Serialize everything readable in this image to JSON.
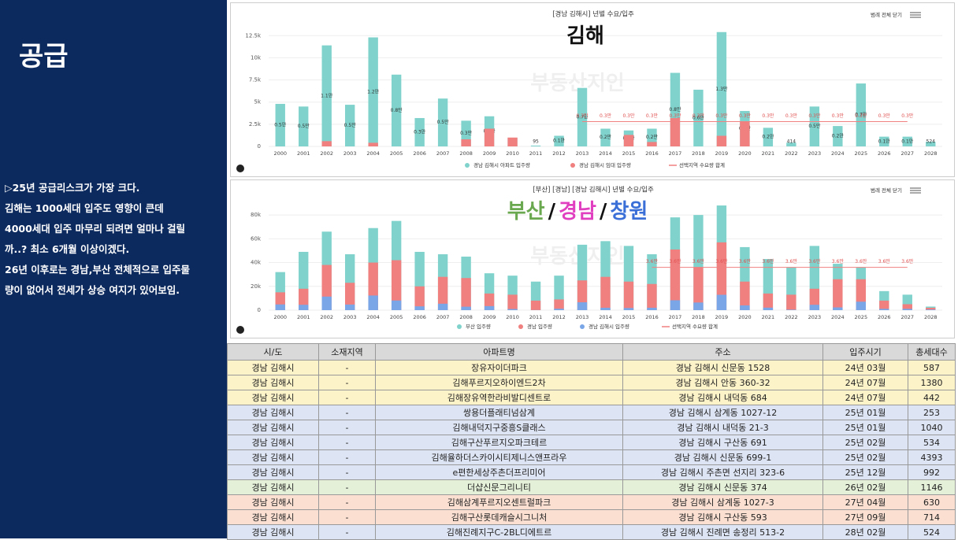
{
  "slide": {
    "title": "공급",
    "notes": [
      "▷25년 공급리스크가 가장 크다.",
      "김해는 1000세대 입주도 영향이 큰데",
      "4000세대 입주 마무리 되려면 얼마나 걸릴",
      "까..? 최소 6개월 이상이겠다.",
      "26년 이후로는 경남,부산 전체적으로 입주물",
      "량이 없어서 전세가 상승 여지가 있어보임."
    ]
  },
  "chart_data": [
    {
      "type": "bar",
      "title": "[경남 김해시] 년별 수요/입주",
      "overlay": [
        {
          "text": "김해",
          "color": "#111111"
        }
      ],
      "watermark": "부동산지인",
      "legend_toggle": "범례 전체 닫기",
      "categories": [
        "2000",
        "2001",
        "2002",
        "2003",
        "2004",
        "2005",
        "2006",
        "2007",
        "2008",
        "2009",
        "2010",
        "2011",
        "2012",
        "2013",
        "2014",
        "2015",
        "2016",
        "2017",
        "2018",
        "2019",
        "2020",
        "2021",
        "2022",
        "2023",
        "2024",
        "2025",
        "2026",
        "2027",
        "2028"
      ],
      "ylim": [
        0,
        13500
      ],
      "yticks": [
        {
          "value": 0,
          "label": "0"
        },
        {
          "value": 2500,
          "label": "2.5k"
        },
        {
          "value": 5000,
          "label": "5k"
        },
        {
          "value": 7500,
          "label": "7.5k"
        },
        {
          "value": 10000,
          "label": "10k"
        },
        {
          "value": 12500,
          "label": "12.5k"
        }
      ],
      "series": [
        {
          "name": "경남 김해시 아파트 입주량",
          "kind": "bar",
          "color": "#7fd3cc",
          "values": [
            4800,
            4500,
            11400,
            4700,
            12300,
            8100,
            3200,
            5400,
            2900,
            3400,
            962,
            95,
            1200,
            6600,
            2000,
            1800,
            2000,
            8300,
            6400,
            12900,
            4000,
            2100,
            414,
            4500,
            2300,
            7100,
            1100,
            1100,
            524
          ],
          "value_labels": [
            "0.5만",
            "0.5만",
            "1.1만",
            "0.5만",
            "1.2만",
            "0.8만",
            "0.3만",
            "0.5만",
            "0.3만",
            "0.3만",
            null,
            null,
            "0.1만",
            "0.7만",
            "0.2만",
            "0.2만",
            "0.2만",
            "0.8만",
            "0.6만",
            "1.3만",
            "0.4만",
            "0.2만",
            null,
            "0.5만",
            "0.2만",
            "0.7만",
            "0.1만",
            "0.1만",
            null
          ]
        },
        {
          "name": "경남 김해시 임대 입주량",
          "kind": "bar",
          "color": "#f08080",
          "values": [
            null,
            null,
            594,
            null,
            410,
            null,
            null,
            null,
            800,
            2000,
            1000,
            null,
            null,
            null,
            null,
            1300,
            500,
            3200,
            null,
            1200,
            2800,
            null,
            null,
            null,
            null,
            null,
            null,
            null,
            null
          ]
        },
        {
          "name": "선택지역 수요량 합계",
          "kind": "line",
          "color": "#f08080",
          "values": [
            null,
            null,
            null,
            null,
            null,
            null,
            null,
            null,
            null,
            null,
            null,
            null,
            null,
            2800,
            2800,
            2800,
            2800,
            2800,
            2800,
            2800,
            2800,
            2800,
            2800,
            2800,
            2800,
            2800,
            2800,
            2800,
            null
          ],
          "value_labels": [
            null,
            null,
            null,
            null,
            null,
            null,
            null,
            null,
            null,
            null,
            null,
            null,
            null,
            "0.3만",
            "0.3만",
            "0.3만",
            "0.3만",
            "0.3만",
            "0.3만",
            "0.3만",
            "0.3만",
            "0.3만",
            "0.3만",
            "0.3만",
            "0.3만",
            "0.3만",
            "0.3만",
            "0.3만",
            null
          ]
        }
      ]
    },
    {
      "type": "bar",
      "title": "[부산] [경남] [경남 김해시] 년별 수요/입주",
      "overlay": [
        {
          "text": "부산",
          "color": "#6aa84f"
        },
        {
          "text": "/",
          "color": "#111111"
        },
        {
          "text": "경남",
          "color": "#e040c0"
        },
        {
          "text": "/",
          "color": "#111111"
        },
        {
          "text": "창원",
          "color": "#3a6fd8"
        }
      ],
      "watermark": "부동산지인",
      "legend_toggle": "범례 전체 닫기",
      "categories": [
        "2000",
        "2001",
        "2002",
        "2003",
        "2004",
        "2005",
        "2006",
        "2007",
        "2008",
        "2009",
        "2010",
        "2011",
        "2012",
        "2013",
        "2014",
        "2015",
        "2016",
        "2017",
        "2018",
        "2019",
        "2020",
        "2021",
        "2022",
        "2023",
        "2024",
        "2025",
        "2026",
        "2027",
        "2028"
      ],
      "ylim": [
        0,
        90000
      ],
      "yticks": [
        {
          "value": 0,
          "label": "0"
        },
        {
          "value": 20000,
          "label": "20k"
        },
        {
          "value": 40000,
          "label": "40k"
        },
        {
          "value": 60000,
          "label": "60k"
        },
        {
          "value": 80000,
          "label": "80k"
        }
      ],
      "series": [
        {
          "name": "부산 입주량",
          "kind": "bar",
          "color": "#7fd3cc",
          "values": [
            32000,
            49000,
            66000,
            47000,
            69000,
            75000,
            49000,
            47000,
            45000,
            31000,
            29000,
            24000,
            29000,
            55000,
            58000,
            54000,
            47000,
            78000,
            80000,
            88000,
            53000,
            43000,
            36000,
            54000,
            39000,
            36000,
            16000,
            13000,
            3000
          ]
        },
        {
          "name": "경남 입주량",
          "kind": "bar",
          "color": "#f08080",
          "values": [
            15000,
            18000,
            38000,
            23000,
            40000,
            42000,
            20000,
            28000,
            27000,
            14000,
            13000,
            8000,
            9000,
            25000,
            28000,
            24000,
            22000,
            51000,
            36000,
            57000,
            24000,
            14000,
            13000,
            18000,
            26000,
            26000,
            8000,
            5000,
            2000
          ]
        },
        {
          "name": "경남 김해시 입주량",
          "kind": "bar",
          "color": "#7aa6e8",
          "values": [
            4800,
            4500,
            11400,
            4700,
            12300,
            8100,
            3200,
            5400,
            2900,
            3400,
            962,
            95,
            1200,
            6600,
            2000,
            1800,
            2000,
            8300,
            6400,
            12900,
            4000,
            2100,
            414,
            4500,
            2300,
            7100,
            1100,
            1100,
            524
          ]
        },
        {
          "name": "선택지역 수요량 합계",
          "kind": "line",
          "color": "#f08080",
          "values": [
            null,
            null,
            null,
            null,
            null,
            null,
            null,
            null,
            null,
            null,
            null,
            null,
            null,
            null,
            null,
            null,
            36000,
            36000,
            36000,
            36000,
            36000,
            36000,
            36000,
            36000,
            36000,
            36000,
            36000,
            36000,
            null
          ],
          "value_labels": [
            null,
            null,
            null,
            null,
            null,
            null,
            null,
            null,
            null,
            null,
            null,
            null,
            null,
            null,
            null,
            null,
            "3.6만",
            "3.6만",
            "3.6만",
            "3.6만",
            "3.6만",
            "3.6만",
            "3.6만",
            "3.6만",
            "3.6만",
            "3.6만",
            "3.6만",
            "3.6만",
            null
          ]
        }
      ]
    }
  ],
  "table": {
    "header": [
      "시/도",
      "소재지역",
      "아파트명",
      "주소",
      "입주시기",
      "총세대수"
    ],
    "rows": [
      {
        "color": "#fdf3c9",
        "cells": [
          "경남 김해시",
          "-",
          "장유자이더파크",
          "경남 김해시 신문동 1528",
          "24년 03월",
          "587"
        ]
      },
      {
        "color": "#fdf3c9",
        "cells": [
          "경남 김해시",
          "-",
          "김해푸르지오하이엔드2차",
          "경남 김해시 안동 360-32",
          "24년 07월",
          "1380"
        ]
      },
      {
        "color": "#fdf3c9",
        "cells": [
          "경남 김해시",
          "-",
          "김해장유역한라비발디센트로",
          "경남 김해시 내덕동 684",
          "24년 07월",
          "442"
        ]
      },
      {
        "color": "#dde4f3",
        "cells": [
          "경남 김해시",
          "-",
          "쌍용더플래티넘삼계",
          "경남 김해시 삼계동 1027-12",
          "25년 01월",
          "253"
        ]
      },
      {
        "color": "#dde4f3",
        "cells": [
          "경남 김해시",
          "-",
          "김해내덕지구중흥S클래스",
          "경남 김해시 내덕동 21-3",
          "25년 01월",
          "1040"
        ]
      },
      {
        "color": "#dde4f3",
        "cells": [
          "경남 김해시",
          "-",
          "김해구산푸르지오파크테르",
          "경남 김해시 구산동 691",
          "25년 02월",
          "534"
        ]
      },
      {
        "color": "#dde4f3",
        "cells": [
          "경남 김해시",
          "-",
          "김해율하더스카이시티제니스앤프라우",
          "경남 김해시 신문동 699-1",
          "25년 02월",
          "4393"
        ]
      },
      {
        "color": "#dde4f3",
        "cells": [
          "경남 김해시",
          "-",
          "e편한세상주촌더프리미어",
          "경남 김해시 주촌면 선지리 323-6",
          "25년 12월",
          "992"
        ]
      },
      {
        "color": "#e5f0d9",
        "cells": [
          "경남 김해시",
          "-",
          "더샵신문그리니티",
          "경남 김해시 신문동 374",
          "26년 02월",
          "1146"
        ]
      },
      {
        "color": "#fbe0d2",
        "cells": [
          "경남 김해시",
          "-",
          "김해삼계푸르지오센트럴파크",
          "경남 김해시 삼계동 1027-3",
          "27년 04월",
          "630"
        ]
      },
      {
        "color": "#fbe0d2",
        "cells": [
          "경남 김해시",
          "-",
          "김해구산롯데캐슬시그니처",
          "경남 김해시 구산동 593",
          "27년 09월",
          "714"
        ]
      },
      {
        "color": "#dde4f3",
        "cells": [
          "경남 김해시",
          "-",
          "김해진례지구C-2BL디에트르",
          "경남 김해시 진례면 송정리 513-2",
          "28년 02월",
          "524"
        ]
      }
    ]
  }
}
